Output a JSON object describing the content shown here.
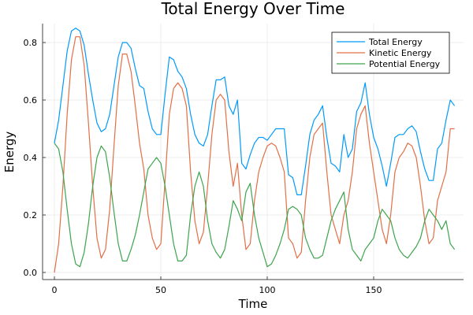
{
  "chart_data": {
    "type": "line",
    "title": "Total Energy Over Time",
    "xlabel": "Time",
    "ylabel": "Energy",
    "xlim": [
      -5.6,
      191
    ],
    "ylim": [
      -0.025,
      0.87
    ],
    "grid": true,
    "legend_position": "top-right",
    "x_ticks": [
      0,
      50,
      100,
      150
    ],
    "x_tick_labels": [
      "0",
      "50",
      "100",
      "150"
    ],
    "y_ticks": [
      0.0,
      0.2,
      0.4,
      0.6,
      0.8
    ],
    "y_tick_labels": [
      "0.0",
      "0.2",
      "0.4",
      "0.6",
      "0.8"
    ],
    "x": [
      0,
      2,
      4,
      6,
      8,
      10,
      12,
      14,
      16,
      18,
      20,
      22,
      24,
      26,
      28,
      30,
      32,
      34,
      36,
      38,
      40,
      42,
      44,
      46,
      48,
      50,
      52,
      54,
      56,
      58,
      60,
      62,
      64,
      66,
      68,
      70,
      72,
      74,
      76,
      78,
      80,
      82,
      84,
      86,
      88,
      90,
      92,
      94,
      96,
      98,
      100,
      102,
      104,
      106,
      108,
      110,
      112,
      114,
      116,
      118,
      120,
      122,
      124,
      126,
      128,
      130,
      132,
      134,
      136,
      138,
      140,
      142,
      144,
      146,
      148,
      150,
      152,
      154,
      156,
      158,
      160,
      162,
      164,
      166,
      168,
      170,
      172,
      174,
      176,
      178,
      180,
      182,
      184,
      186,
      188
    ],
    "series": [
      {
        "name": "Total Energy",
        "color": "#009AFA",
        "values": [
          0.45,
          0.53,
          0.65,
          0.77,
          0.84,
          0.85,
          0.84,
          0.79,
          0.69,
          0.6,
          0.52,
          0.49,
          0.5,
          0.55,
          0.65,
          0.75,
          0.8,
          0.8,
          0.78,
          0.71,
          0.65,
          0.64,
          0.56,
          0.5,
          0.48,
          0.48,
          0.62,
          0.75,
          0.74,
          0.7,
          0.68,
          0.64,
          0.55,
          0.48,
          0.45,
          0.44,
          0.48,
          0.58,
          0.67,
          0.67,
          0.68,
          0.58,
          0.55,
          0.6,
          0.38,
          0.36,
          0.41,
          0.45,
          0.47,
          0.47,
          0.46,
          0.48,
          0.5,
          0.5,
          0.5,
          0.34,
          0.33,
          0.27,
          0.27,
          0.37,
          0.48,
          0.53,
          0.55,
          0.58,
          0.47,
          0.38,
          0.37,
          0.35,
          0.48,
          0.4,
          0.43,
          0.56,
          0.59,
          0.66,
          0.55,
          0.47,
          0.43,
          0.37,
          0.3,
          0.38,
          0.47,
          0.48,
          0.48,
          0.5,
          0.51,
          0.49,
          0.42,
          0.36,
          0.32,
          0.32,
          0.43,
          0.45,
          0.53,
          0.6,
          0.58
        ]
      },
      {
        "name": "Kinetic Energy",
        "color": "#E26F46",
        "values": [
          0.0,
          0.1,
          0.3,
          0.55,
          0.74,
          0.82,
          0.82,
          0.72,
          0.52,
          0.3,
          0.12,
          0.05,
          0.08,
          0.22,
          0.44,
          0.65,
          0.76,
          0.76,
          0.7,
          0.58,
          0.45,
          0.36,
          0.2,
          0.12,
          0.08,
          0.1,
          0.32,
          0.55,
          0.64,
          0.66,
          0.64,
          0.58,
          0.35,
          0.18,
          0.1,
          0.14,
          0.3,
          0.48,
          0.6,
          0.62,
          0.6,
          0.42,
          0.3,
          0.38,
          0.2,
          0.08,
          0.1,
          0.25,
          0.35,
          0.4,
          0.44,
          0.45,
          0.44,
          0.4,
          0.35,
          0.12,
          0.1,
          0.05,
          0.07,
          0.25,
          0.4,
          0.48,
          0.5,
          0.52,
          0.35,
          0.2,
          0.15,
          0.1,
          0.2,
          0.25,
          0.35,
          0.5,
          0.55,
          0.58,
          0.45,
          0.35,
          0.25,
          0.15,
          0.1,
          0.2,
          0.35,
          0.4,
          0.42,
          0.45,
          0.44,
          0.4,
          0.3,
          0.18,
          0.1,
          0.12,
          0.25,
          0.3,
          0.35,
          0.5,
          0.5
        ]
      },
      {
        "name": "Potential Energy",
        "color": "#3DA44D",
        "values": [
          0.45,
          0.43,
          0.35,
          0.22,
          0.1,
          0.03,
          0.02,
          0.07,
          0.17,
          0.3,
          0.4,
          0.44,
          0.42,
          0.33,
          0.21,
          0.1,
          0.04,
          0.04,
          0.08,
          0.13,
          0.2,
          0.28,
          0.36,
          0.38,
          0.4,
          0.38,
          0.3,
          0.2,
          0.1,
          0.04,
          0.04,
          0.06,
          0.2,
          0.3,
          0.35,
          0.3,
          0.18,
          0.1,
          0.07,
          0.05,
          0.08,
          0.16,
          0.25,
          0.22,
          0.18,
          0.28,
          0.31,
          0.2,
          0.12,
          0.07,
          0.02,
          0.03,
          0.06,
          0.1,
          0.15,
          0.22,
          0.23,
          0.22,
          0.2,
          0.12,
          0.08,
          0.05,
          0.05,
          0.06,
          0.12,
          0.18,
          0.22,
          0.25,
          0.28,
          0.15,
          0.08,
          0.06,
          0.04,
          0.08,
          0.1,
          0.12,
          0.18,
          0.22,
          0.2,
          0.18,
          0.12,
          0.08,
          0.06,
          0.05,
          0.07,
          0.09,
          0.12,
          0.18,
          0.22,
          0.2,
          0.18,
          0.15,
          0.18,
          0.1,
          0.08
        ]
      }
    ]
  }
}
